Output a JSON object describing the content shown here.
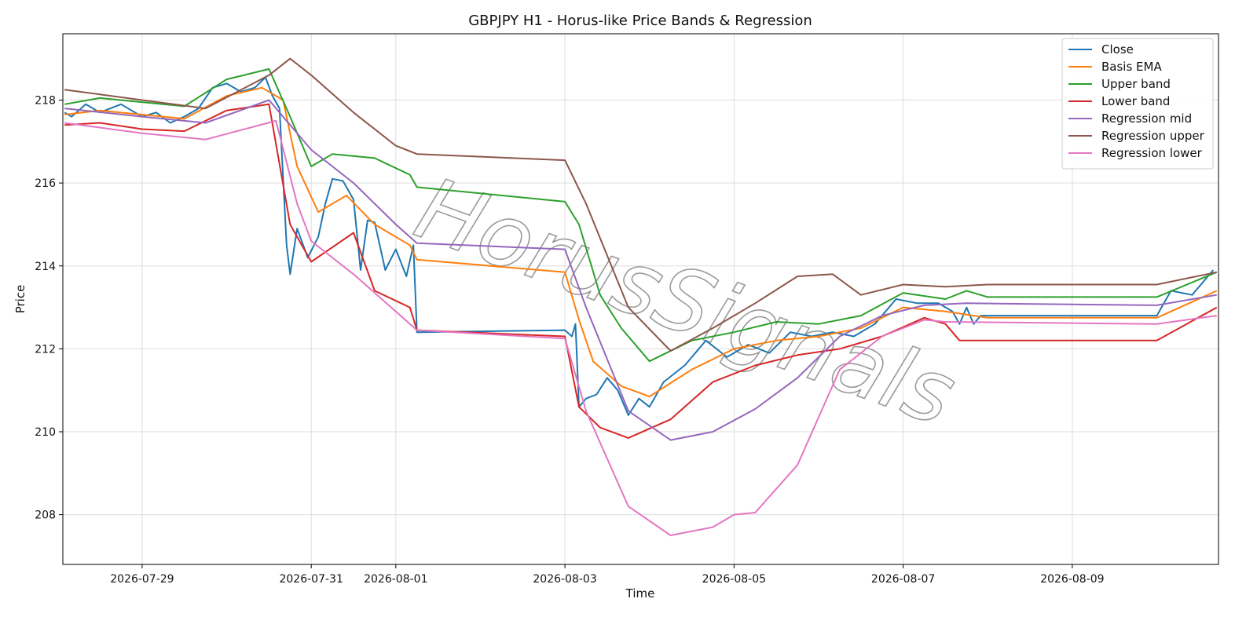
{
  "chart_data": {
    "type": "line",
    "title": "GBPJPY H1 - Horus-like Price Bands & Regression",
    "xlabel": "Time",
    "ylabel": "Price",
    "x_scale": "date",
    "xlim": [
      "2026-07-28T01:30",
      "2026-08-10T17:30"
    ],
    "ylim": [
      206.8,
      219.6
    ],
    "x_ticks": [
      "2026-07-29",
      "2026-07-31",
      "2026-08-01",
      "2026-08-03",
      "2026-08-05",
      "2026-08-07",
      "2026-08-09"
    ],
    "y_ticks": [
      208,
      210,
      212,
      214,
      216,
      218
    ],
    "grid": true,
    "legend_position": "top-right",
    "watermark": "HorusSignals",
    "series": [
      {
        "name": "Close",
        "color": "#1f77b4",
        "points": [
          [
            "2026-07-28T02:00",
            217.7
          ],
          [
            "2026-07-28T04:00",
            217.6
          ],
          [
            "2026-07-28T08:00",
            217.9
          ],
          [
            "2026-07-28T12:00",
            217.7
          ],
          [
            "2026-07-28T18:00",
            217.9
          ],
          [
            "2026-07-29T00:00",
            217.6
          ],
          [
            "2026-07-29T04:00",
            217.7
          ],
          [
            "2026-07-29T08:00",
            217.45
          ],
          [
            "2026-07-29T12:00",
            217.6
          ],
          [
            "2026-07-29T16:00",
            217.8
          ],
          [
            "2026-07-29T20:00",
            218.3
          ],
          [
            "2026-07-30T00:00",
            218.4
          ],
          [
            "2026-07-30T04:00",
            218.2
          ],
          [
            "2026-07-30T08:00",
            218.3
          ],
          [
            "2026-07-30T11:00",
            218.55
          ],
          [
            "2026-07-30T13:00",
            218.1
          ],
          [
            "2026-07-30T15:00",
            217.8
          ],
          [
            "2026-07-30T17:00",
            214.5
          ],
          [
            "2026-07-30T18:00",
            213.8
          ],
          [
            "2026-07-30T20:00",
            214.9
          ],
          [
            "2026-07-30T23:00",
            214.2
          ],
          [
            "2026-07-31T02:00",
            214.7
          ],
          [
            "2026-07-31T04:00",
            215.5
          ],
          [
            "2026-07-31T06:00",
            216.1
          ],
          [
            "2026-07-31T09:00",
            216.05
          ],
          [
            "2026-07-31T12:00",
            215.6
          ],
          [
            "2026-07-31T14:00",
            213.9
          ],
          [
            "2026-07-31T16:00",
            215.1
          ],
          [
            "2026-07-31T18:00",
            215.05
          ],
          [
            "2026-07-31T21:00",
            213.9
          ],
          [
            "2026-08-01T00:00",
            214.4
          ],
          [
            "2026-08-01T03:00",
            213.75
          ],
          [
            "2026-08-01T05:00",
            214.5
          ],
          [
            "2026-08-01T06:00",
            212.4
          ],
          [
            "2026-08-03T00:00",
            212.45
          ],
          [
            "2026-08-03T02:00",
            212.3
          ],
          [
            "2026-08-03T03:00",
            212.6
          ],
          [
            "2026-08-03T04:00",
            210.6
          ],
          [
            "2026-08-03T06:00",
            210.8
          ],
          [
            "2026-08-03T09:00",
            210.9
          ],
          [
            "2026-08-03T12:00",
            211.3
          ],
          [
            "2026-08-03T15:00",
            211.0
          ],
          [
            "2026-08-03T18:00",
            210.4
          ],
          [
            "2026-08-03T21:00",
            210.8
          ],
          [
            "2026-08-04T00:00",
            210.6
          ],
          [
            "2026-08-04T04:00",
            211.2
          ],
          [
            "2026-08-04T10:00",
            211.6
          ],
          [
            "2026-08-04T16:00",
            212.2
          ],
          [
            "2026-08-04T22:00",
            211.8
          ],
          [
            "2026-08-05T04:00",
            212.1
          ],
          [
            "2026-08-05T10:00",
            211.9
          ],
          [
            "2026-08-05T16:00",
            212.4
          ],
          [
            "2026-08-05T22:00",
            212.3
          ],
          [
            "2026-08-06T04:00",
            212.4
          ],
          [
            "2026-08-06T10:00",
            212.3
          ],
          [
            "2026-08-06T16:00",
            212.6
          ],
          [
            "2026-08-06T22:00",
            213.2
          ],
          [
            "2026-08-07T04:00",
            213.1
          ],
          [
            "2026-08-07T10:00",
            213.1
          ],
          [
            "2026-08-07T14:00",
            212.9
          ],
          [
            "2026-08-07T16:00",
            212.6
          ],
          [
            "2026-08-07T18:00",
            213.0
          ],
          [
            "2026-08-07T20:00",
            212.6
          ],
          [
            "2026-08-07T22:00",
            212.8
          ],
          [
            "2026-08-10T00:00",
            212.8
          ],
          [
            "2026-08-10T04:00",
            213.4
          ],
          [
            "2026-08-10T10:00",
            213.3
          ],
          [
            "2026-08-10T16:00",
            213.9
          ]
        ]
      },
      {
        "name": "Basis EMA",
        "color": "#ff7f0e",
        "points": [
          [
            "2026-07-28T02:00",
            217.65
          ],
          [
            "2026-07-28T12:00",
            217.75
          ],
          [
            "2026-07-29T00:00",
            217.65
          ],
          [
            "2026-07-29T12:00",
            217.55
          ],
          [
            "2026-07-30T00:00",
            218.1
          ],
          [
            "2026-07-30T10:00",
            218.3
          ],
          [
            "2026-07-30T16:00",
            218.0
          ],
          [
            "2026-07-30T20:00",
            216.4
          ],
          [
            "2026-07-31T02:00",
            215.3
          ],
          [
            "2026-07-31T10:00",
            215.7
          ],
          [
            "2026-07-31T18:00",
            215.0
          ],
          [
            "2026-08-01T04:00",
            214.5
          ],
          [
            "2026-08-01T06:00",
            214.15
          ],
          [
            "2026-08-03T00:00",
            213.85
          ],
          [
            "2026-08-03T04:00",
            212.7
          ],
          [
            "2026-08-03T08:00",
            211.7
          ],
          [
            "2026-08-03T16:00",
            211.1
          ],
          [
            "2026-08-04T00:00",
            210.85
          ],
          [
            "2026-08-04T12:00",
            211.5
          ],
          [
            "2026-08-05T00:00",
            212.0
          ],
          [
            "2026-08-05T12:00",
            212.2
          ],
          [
            "2026-08-06T00:00",
            212.3
          ],
          [
            "2026-08-06T12:00",
            212.5
          ],
          [
            "2026-08-07T00:00",
            213.0
          ],
          [
            "2026-08-07T12:00",
            212.9
          ],
          [
            "2026-08-08T00:00",
            212.75
          ],
          [
            "2026-08-10T00:00",
            212.75
          ],
          [
            "2026-08-10T17:00",
            213.4
          ]
        ]
      },
      {
        "name": "Upper band",
        "color": "#2ca02c",
        "points": [
          [
            "2026-07-28T02:00",
            217.9
          ],
          [
            "2026-07-28T12:00",
            218.05
          ],
          [
            "2026-07-29T00:00",
            217.95
          ],
          [
            "2026-07-29T12:00",
            217.85
          ],
          [
            "2026-07-30T00:00",
            218.5
          ],
          [
            "2026-07-30T12:00",
            218.75
          ],
          [
            "2026-07-30T18:00",
            217.6
          ],
          [
            "2026-07-31T00:00",
            216.4
          ],
          [
            "2026-07-31T06:00",
            216.7
          ],
          [
            "2026-07-31T18:00",
            216.6
          ],
          [
            "2026-08-01T04:00",
            216.2
          ],
          [
            "2026-08-01T06:00",
            215.9
          ],
          [
            "2026-08-03T00:00",
            215.55
          ],
          [
            "2026-08-03T04:00",
            215.0
          ],
          [
            "2026-08-03T10:00",
            213.3
          ],
          [
            "2026-08-03T16:00",
            212.5
          ],
          [
            "2026-08-04T00:00",
            211.7
          ],
          [
            "2026-08-04T12:00",
            212.2
          ],
          [
            "2026-08-05T00:00",
            212.4
          ],
          [
            "2026-08-05T12:00",
            212.65
          ],
          [
            "2026-08-06T00:00",
            212.6
          ],
          [
            "2026-08-06T12:00",
            212.8
          ],
          [
            "2026-08-07T00:00",
            213.35
          ],
          [
            "2026-08-07T12:00",
            213.2
          ],
          [
            "2026-08-07T18:00",
            213.4
          ],
          [
            "2026-08-08T00:00",
            213.25
          ],
          [
            "2026-08-10T00:00",
            213.25
          ],
          [
            "2026-08-10T17:00",
            213.85
          ]
        ]
      },
      {
        "name": "Lower band",
        "color": "#d62728",
        "points": [
          [
            "2026-07-28T02:00",
            217.4
          ],
          [
            "2026-07-28T12:00",
            217.45
          ],
          [
            "2026-07-29T00:00",
            217.3
          ],
          [
            "2026-07-29T12:00",
            217.25
          ],
          [
            "2026-07-30T00:00",
            217.75
          ],
          [
            "2026-07-30T12:00",
            217.9
          ],
          [
            "2026-07-30T18:00",
            215.0
          ],
          [
            "2026-07-31T00:00",
            214.1
          ],
          [
            "2026-07-31T12:00",
            214.8
          ],
          [
            "2026-07-31T18:00",
            213.4
          ],
          [
            "2026-08-01T04:00",
            213.0
          ],
          [
            "2026-08-01T06:00",
            212.45
          ],
          [
            "2026-08-03T00:00",
            212.3
          ],
          [
            "2026-08-03T04:00",
            210.6
          ],
          [
            "2026-08-03T10:00",
            210.1
          ],
          [
            "2026-08-03T18:00",
            209.85
          ],
          [
            "2026-08-04T06:00",
            210.3
          ],
          [
            "2026-08-04T18:00",
            211.2
          ],
          [
            "2026-08-05T06:00",
            211.6
          ],
          [
            "2026-08-05T18:00",
            211.85
          ],
          [
            "2026-08-06T06:00",
            212.0
          ],
          [
            "2026-08-06T18:00",
            212.3
          ],
          [
            "2026-08-07T06:00",
            212.75
          ],
          [
            "2026-08-07T12:00",
            212.6
          ],
          [
            "2026-08-07T16:00",
            212.2
          ],
          [
            "2026-08-08T00:00",
            212.2
          ],
          [
            "2026-08-10T00:00",
            212.2
          ],
          [
            "2026-08-10T17:00",
            213.0
          ]
        ]
      },
      {
        "name": "Regression mid",
        "color": "#9467bd",
        "points": [
          [
            "2026-07-28T02:00",
            217.8
          ],
          [
            "2026-07-29T00:00",
            217.6
          ],
          [
            "2026-07-29T18:00",
            217.45
          ],
          [
            "2026-07-30T12:00",
            218.0
          ],
          [
            "2026-07-30T18:00",
            217.4
          ],
          [
            "2026-07-31T00:00",
            216.8
          ],
          [
            "2026-07-31T12:00",
            216.0
          ],
          [
            "2026-08-01T00:00",
            215.0
          ],
          [
            "2026-08-01T06:00",
            214.55
          ],
          [
            "2026-08-03T00:00",
            214.4
          ],
          [
            "2026-08-03T06:00",
            213.0
          ],
          [
            "2026-08-03T18:00",
            210.5
          ],
          [
            "2026-08-04T06:00",
            209.8
          ],
          [
            "2026-08-04T18:00",
            210.0
          ],
          [
            "2026-08-05T06:00",
            210.55
          ],
          [
            "2026-08-05T18:00",
            211.3
          ],
          [
            "2026-08-06T06:00",
            212.3
          ],
          [
            "2026-08-06T18:00",
            212.8
          ],
          [
            "2026-08-07T06:00",
            213.05
          ],
          [
            "2026-08-07T18:00",
            213.1
          ],
          [
            "2026-08-10T00:00",
            213.05
          ],
          [
            "2026-08-10T17:00",
            213.3
          ]
        ]
      },
      {
        "name": "Regression upper",
        "color": "#8c564b",
        "points": [
          [
            "2026-07-28T02:00",
            218.25
          ],
          [
            "2026-07-29T00:00",
            218.0
          ],
          [
            "2026-07-29T18:00",
            217.8
          ],
          [
            "2026-07-30T12:00",
            218.6
          ],
          [
            "2026-07-30T18:00",
            219.0
          ],
          [
            "2026-07-31T00:00",
            218.6
          ],
          [
            "2026-07-31T12:00",
            217.7
          ],
          [
            "2026-08-01T00:00",
            216.9
          ],
          [
            "2026-08-01T06:00",
            216.7
          ],
          [
            "2026-08-03T00:00",
            216.55
          ],
          [
            "2026-08-03T06:00",
            215.5
          ],
          [
            "2026-08-03T18:00",
            213.0
          ],
          [
            "2026-08-04T06:00",
            211.95
          ],
          [
            "2026-08-04T18:00",
            212.5
          ],
          [
            "2026-08-05T06:00",
            213.1
          ],
          [
            "2026-08-05T18:00",
            213.75
          ],
          [
            "2026-08-06T04:00",
            213.8
          ],
          [
            "2026-08-06T12:00",
            213.3
          ],
          [
            "2026-08-07T00:00",
            213.55
          ],
          [
            "2026-08-07T12:00",
            213.5
          ],
          [
            "2026-08-08T00:00",
            213.55
          ],
          [
            "2026-08-10T00:00",
            213.55
          ],
          [
            "2026-08-10T17:00",
            213.85
          ]
        ]
      },
      {
        "name": "Regression lower",
        "color": "#e377c2",
        "points": [
          [
            "2026-07-28T02:00",
            217.45
          ],
          [
            "2026-07-29T00:00",
            217.2
          ],
          [
            "2026-07-29T18:00",
            217.05
          ],
          [
            "2026-07-30T14:00",
            217.5
          ],
          [
            "2026-07-30T20:00",
            215.5
          ],
          [
            "2026-07-31T00:00",
            214.6
          ],
          [
            "2026-07-31T12:00",
            213.8
          ],
          [
            "2026-08-01T00:00",
            212.9
          ],
          [
            "2026-08-01T06:00",
            212.45
          ],
          [
            "2026-08-03T00:00",
            212.25
          ],
          [
            "2026-08-03T06:00",
            210.5
          ],
          [
            "2026-08-03T18:00",
            208.2
          ],
          [
            "2026-08-04T06:00",
            207.5
          ],
          [
            "2026-08-04T18:00",
            207.7
          ],
          [
            "2026-08-05T00:00",
            208.0
          ],
          [
            "2026-08-05T06:00",
            208.05
          ],
          [
            "2026-08-05T18:00",
            209.2
          ],
          [
            "2026-08-06T06:00",
            211.5
          ],
          [
            "2026-08-06T18:00",
            212.3
          ],
          [
            "2026-08-07T06:00",
            212.7
          ],
          [
            "2026-08-07T12:00",
            212.65
          ],
          [
            "2026-08-10T00:00",
            212.6
          ],
          [
            "2026-08-10T17:00",
            212.8
          ]
        ]
      }
    ]
  }
}
